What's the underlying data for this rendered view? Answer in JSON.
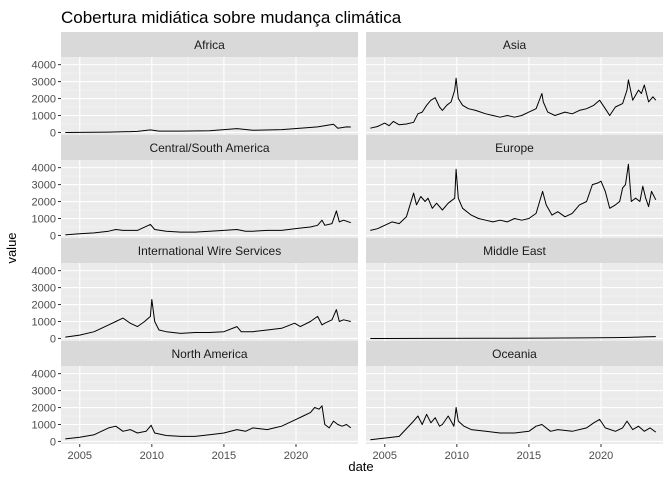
{
  "chart_data": {
    "type": "line",
    "title": "Cobertura midiática sobre mudança climática",
    "xlabel": "date",
    "ylabel": "value",
    "x_ticks": [
      "2005",
      "2010",
      "2015",
      "2020"
    ],
    "y_ticks": [
      "0",
      "1000",
      "2000",
      "3000",
      "4000"
    ],
    "xlim": [
      2003.7,
      2024.3
    ],
    "ylim": [
      -150,
      4450
    ],
    "grid": true,
    "facet_layout": "4 rows x 2 columns",
    "line_color": "#000000",
    "panel_background": "#ebebeb",
    "strip_background": "#d9d9d9",
    "series": [
      {
        "name": "Africa",
        "x": [
          2004.0,
          2005.0,
          2006.0,
          2007.0,
          2008.0,
          2009.0,
          2009.9,
          2010.5,
          2012.0,
          2014.0,
          2015.9,
          2017.0,
          2019.0,
          2020.5,
          2021.5,
          2022.6,
          2022.9,
          2023.5,
          2023.8
        ],
        "values": [
          0,
          5,
          10,
          20,
          40,
          60,
          150,
          80,
          80,
          100,
          230,
          130,
          170,
          260,
          330,
          480,
          250,
          330,
          320
        ]
      },
      {
        "name": "Asia",
        "x": [
          2004.0,
          2004.5,
          2005.0,
          2005.3,
          2005.6,
          2006.0,
          2006.5,
          2007.0,
          2007.3,
          2007.6,
          2007.9,
          2008.2,
          2008.5,
          2008.8,
          2009.0,
          2009.3,
          2009.6,
          2009.85,
          2009.95,
          2010.1,
          2010.4,
          2010.8,
          2011.3,
          2012.0,
          2012.5,
          2013.0,
          2013.5,
          2014.0,
          2014.5,
          2015.0,
          2015.5,
          2015.9,
          2016.0,
          2016.3,
          2016.8,
          2017.5,
          2018.0,
          2018.5,
          2019.0,
          2019.5,
          2019.9,
          2020.3,
          2020.6,
          2021.0,
          2021.5,
          2021.8,
          2021.9,
          2022.2,
          2022.6,
          2022.8,
          2023.0,
          2023.3,
          2023.6,
          2023.8
        ],
        "values": [
          250,
          350,
          550,
          400,
          650,
          450,
          500,
          600,
          1100,
          1200,
          1600,
          1900,
          2050,
          1500,
          1300,
          1600,
          1800,
          2500,
          3200,
          2000,
          1600,
          1400,
          1300,
          1100,
          1000,
          900,
          1000,
          900,
          1000,
          1200,
          1400,
          2300,
          1800,
          1200,
          1000,
          1200,
          1100,
          1300,
          1400,
          1600,
          1900,
          1400,
          1000,
          1500,
          1700,
          2500,
          3100,
          1900,
          2500,
          2300,
          2800,
          1800,
          2100,
          1900
        ]
      },
      {
        "name": "Central/South America",
        "x": [
          2004.0,
          2005.0,
          2006.0,
          2007.0,
          2007.5,
          2008.0,
          2009.0,
          2009.9,
          2010.2,
          2011.0,
          2012.0,
          2013.0,
          2014.0,
          2015.0,
          2015.9,
          2016.5,
          2017.0,
          2018.0,
          2019.0,
          2019.9,
          2020.5,
          2021.0,
          2021.5,
          2021.8,
          2022.0,
          2022.5,
          2022.8,
          2023.0,
          2023.3,
          2023.8
        ],
        "values": [
          30,
          100,
          150,
          250,
          350,
          300,
          300,
          650,
          350,
          250,
          200,
          200,
          250,
          300,
          350,
          250,
          250,
          300,
          300,
          400,
          450,
          500,
          600,
          900,
          600,
          700,
          1450,
          800,
          900,
          750
        ]
      },
      {
        "name": "Europe",
        "x": [
          2004.0,
          2004.5,
          2005.0,
          2005.5,
          2006.0,
          2006.5,
          2007.0,
          2007.2,
          2007.5,
          2007.8,
          2008.0,
          2008.3,
          2008.6,
          2009.0,
          2009.4,
          2009.85,
          2009.95,
          2010.1,
          2010.4,
          2011.0,
          2011.5,
          2012.0,
          2012.5,
          2013.0,
          2013.5,
          2014.0,
          2014.5,
          2015.0,
          2015.5,
          2015.95,
          2016.2,
          2016.6,
          2017.0,
          2017.5,
          2018.0,
          2018.5,
          2019.0,
          2019.4,
          2019.8,
          2020.0,
          2020.3,
          2020.6,
          2021.0,
          2021.3,
          2021.5,
          2021.7,
          2021.9,
          2022.1,
          2022.4,
          2022.7,
          2022.9,
          2023.1,
          2023.3,
          2023.5,
          2023.8
        ],
        "values": [
          300,
          400,
          600,
          800,
          700,
          1100,
          2500,
          1800,
          2300,
          2000,
          2200,
          1600,
          1900,
          1500,
          1900,
          2200,
          3900,
          2200,
          1600,
          1200,
          1000,
          900,
          800,
          900,
          800,
          1000,
          900,
          1000,
          1300,
          2600,
          1800,
          1200,
          1400,
          1100,
          1300,
          1800,
          2000,
          3000,
          3100,
          3200,
          2600,
          1600,
          1800,
          2000,
          2800,
          3000,
          4200,
          2000,
          2200,
          2000,
          2900,
          2200,
          1700,
          2600,
          2100
        ]
      },
      {
        "name": "International Wire Services",
        "x": [
          2004.0,
          2005.0,
          2006.0,
          2007.0,
          2007.5,
          2008.0,
          2008.5,
          2009.0,
          2009.5,
          2009.9,
          2010.0,
          2010.2,
          2010.5,
          2011.0,
          2012.0,
          2013.0,
          2014.0,
          2015.0,
          2015.9,
          2016.2,
          2017.0,
          2018.0,
          2019.0,
          2019.9,
          2020.3,
          2021.0,
          2021.5,
          2021.8,
          2022.0,
          2022.5,
          2022.8,
          2023.0,
          2023.3,
          2023.8
        ],
        "values": [
          80,
          200,
          400,
          800,
          1000,
          1200,
          900,
          700,
          1000,
          1300,
          2300,
          1000,
          500,
          400,
          300,
          350,
          350,
          400,
          700,
          400,
          400,
          500,
          600,
          900,
          700,
          1000,
          1300,
          800,
          900,
          1100,
          1700,
          1000,
          1100,
          1000
        ]
      },
      {
        "name": "Middle East",
        "x": [
          2004.0,
          2008.0,
          2012.0,
          2016.0,
          2019.0,
          2021.0,
          2022.0,
          2023.0,
          2023.8
        ],
        "values": [
          0,
          5,
          10,
          20,
          30,
          50,
          60,
          90,
          110
        ]
      },
      {
        "name": "North America",
        "x": [
          2004.0,
          2005.0,
          2006.0,
          2007.0,
          2007.5,
          2008.0,
          2008.5,
          2009.0,
          2009.6,
          2009.95,
          2010.2,
          2011.0,
          2012.0,
          2013.0,
          2014.0,
          2015.0,
          2015.9,
          2016.5,
          2017.0,
          2018.0,
          2018.5,
          2019.0,
          2019.5,
          2020.0,
          2020.5,
          2021.0,
          2021.3,
          2021.6,
          2021.8,
          2022.0,
          2022.3,
          2022.6,
          2022.9,
          2023.2,
          2023.5,
          2023.8
        ],
        "values": [
          150,
          250,
          400,
          800,
          900,
          600,
          700,
          500,
          600,
          950,
          500,
          350,
          300,
          300,
          400,
          500,
          700,
          600,
          800,
          700,
          800,
          900,
          1100,
          1300,
          1500,
          1700,
          2000,
          1900,
          2100,
          1000,
          800,
          1200,
          1000,
          900,
          1000,
          800
        ]
      },
      {
        "name": "Oceania",
        "x": [
          2004.0,
          2005.0,
          2006.0,
          2007.0,
          2007.3,
          2007.6,
          2007.9,
          2008.2,
          2008.5,
          2008.8,
          2009.0,
          2009.4,
          2009.8,
          2009.95,
          2010.1,
          2010.5,
          2011.0,
          2012.0,
          2013.0,
          2014.0,
          2015.0,
          2015.5,
          2015.9,
          2016.5,
          2017.0,
          2018.0,
          2019.0,
          2019.5,
          2019.9,
          2020.3,
          2021.0,
          2021.5,
          2021.8,
          2022.2,
          2022.6,
          2023.0,
          2023.4,
          2023.8
        ],
        "values": [
          100,
          200,
          300,
          1200,
          1500,
          1000,
          1600,
          1100,
          1400,
          900,
          1000,
          1500,
          900,
          2000,
          1200,
          900,
          700,
          600,
          500,
          500,
          600,
          900,
          1000,
          600,
          700,
          600,
          800,
          1100,
          1300,
          800,
          600,
          800,
          1200,
          700,
          900,
          600,
          800,
          550
        ]
      }
    ]
  }
}
